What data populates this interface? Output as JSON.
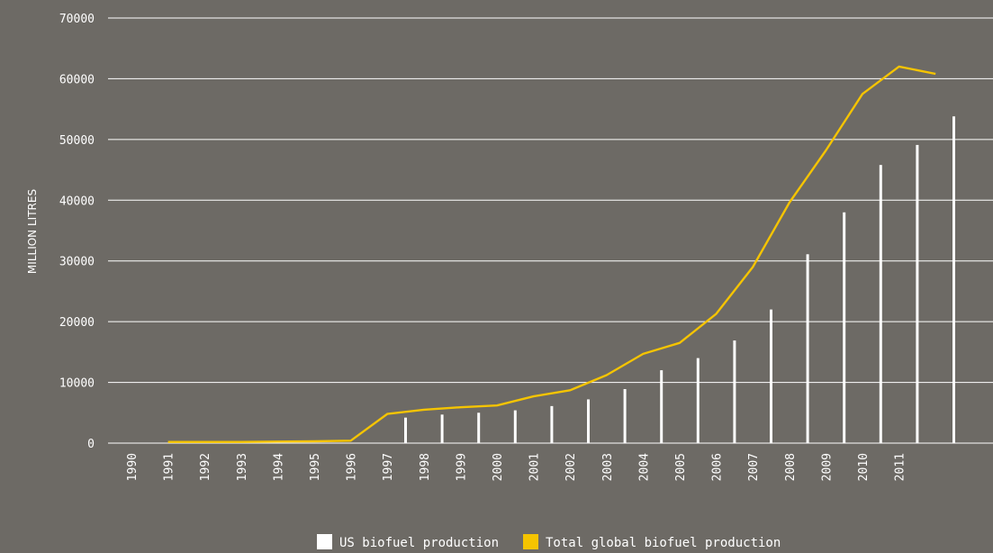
{
  "colors": {
    "background": "#6d6a65",
    "grid": "#ffffff",
    "us_bar": "#ffffff",
    "global_line": "#f5c400"
  },
  "chart_data": {
    "type": "bar",
    "title": "",
    "ylabel": "MILLION LITRES",
    "xlabel": "",
    "ylim": [
      0,
      70000
    ],
    "yticks": [
      0,
      10000,
      20000,
      30000,
      40000,
      50000,
      60000,
      70000
    ],
    "categories": [
      "1990",
      "1991",
      "1992",
      "1993",
      "1994",
      "1995",
      "1996",
      "1997",
      "1998",
      "1999",
      "2000",
      "2001",
      "2002",
      "2003",
      "2004",
      "2005",
      "2006",
      "2007",
      "2008",
      "2009",
      "2010",
      "2011"
    ],
    "grid": true,
    "legend_position": "bottom-center",
    "series": [
      {
        "name": "US biofuel production",
        "type": "bar",
        "x": [
          1997.5,
          1998.5,
          1999.5,
          2000.5,
          2001.5,
          2002.5,
          2003.5,
          2004.5,
          2005.5,
          2006.5,
          2007.5,
          2008.5,
          2009.5,
          2010.5,
          2011.5,
          2012.5
        ],
        "values": [
          4200,
          4700,
          5000,
          5400,
          6100,
          7200,
          8900,
          12000,
          14000,
          16900,
          22000,
          31100,
          38000,
          45800,
          49100,
          53800
        ]
      },
      {
        "name": "Total global biofuel production",
        "type": "line",
        "x": [
          1991,
          1992,
          1993,
          1994,
          1995,
          1996,
          1997,
          1998,
          1999,
          2000,
          2001,
          2002,
          2003,
          2004,
          2005,
          2006,
          2007,
          2008,
          2009,
          2010,
          2011,
          2012
        ],
        "values": [
          200,
          200,
          200,
          250,
          300,
          400,
          4800,
          5500,
          5900,
          6200,
          7700,
          8700,
          11200,
          14700,
          16500,
          21300,
          29000,
          39600,
          48200,
          57500,
          62000,
          60800
        ]
      }
    ]
  }
}
